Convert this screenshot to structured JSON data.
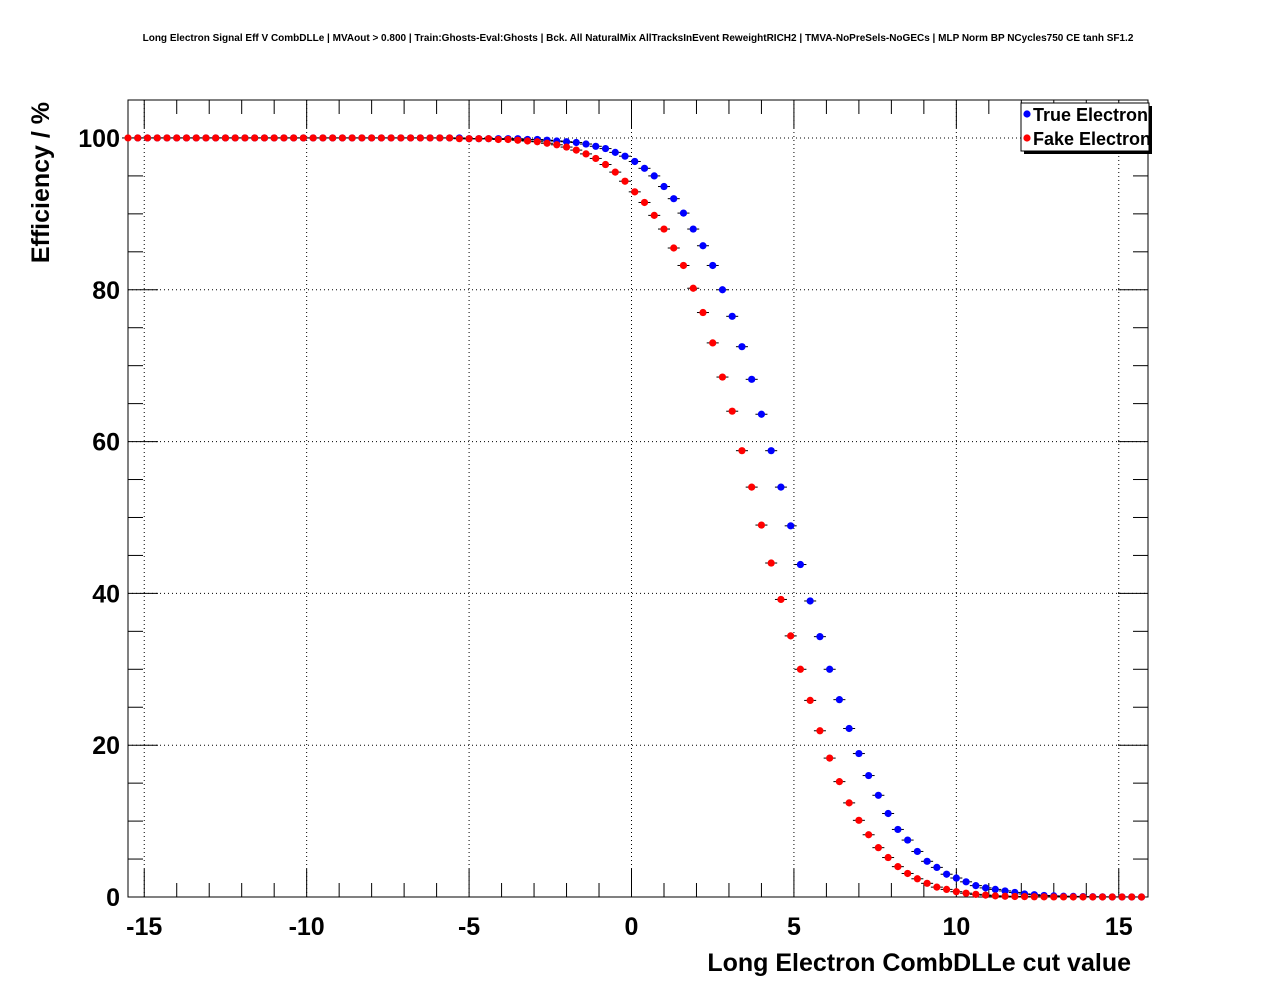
{
  "chart_data": {
    "type": "scatter",
    "title": "Long Electron Signal Eff V CombDLLe | MVAout > 0.800 | Train:Ghosts-Eval:Ghosts | Bck. All NaturalMix AllTracksInEvent ReweightRICH2 | TMVA-NoPreSels-NoGECs | MLP Norm BP NCycles750 CE tanh SF1.2",
    "xlabel": "Long Electron CombDLLe cut value",
    "ylabel": "Efficiency / %",
    "xlim": [
      -15.5,
      15.9
    ],
    "ylim": [
      0,
      105
    ],
    "xticks": [
      -15,
      -10,
      -5,
      0,
      5,
      10,
      15
    ],
    "yticks": [
      0,
      20,
      40,
      60,
      80,
      100
    ],
    "grid": true,
    "legend_position": "top-right",
    "x": [
      -15.5,
      -15.2,
      -14.9,
      -14.6,
      -14.3,
      -14.0,
      -13.7,
      -13.4,
      -13.1,
      -12.8,
      -12.5,
      -12.2,
      -11.9,
      -11.6,
      -11.3,
      -11.0,
      -10.7,
      -10.4,
      -10.1,
      -9.8,
      -9.5,
      -9.2,
      -8.9,
      -8.6,
      -8.3,
      -8.0,
      -7.7,
      -7.4,
      -7.1,
      -6.8,
      -6.5,
      -6.2,
      -5.9,
      -5.6,
      -5.3,
      -5.0,
      -4.7,
      -4.4,
      -4.1,
      -3.8,
      -3.5,
      -3.2,
      -2.9,
      -2.6,
      -2.3,
      -2.0,
      -1.7,
      -1.4,
      -1.1,
      -0.8,
      -0.5,
      -0.2,
      0.1,
      0.4,
      0.7,
      1.0,
      1.3,
      1.6,
      1.9,
      2.2,
      2.5,
      2.8,
      3.1,
      3.4,
      3.7,
      4.0,
      4.3,
      4.6,
      4.9,
      5.2,
      5.5,
      5.8,
      6.1,
      6.4,
      6.7,
      7.0,
      7.3,
      7.6,
      7.9,
      8.2,
      8.5,
      8.8,
      9.1,
      9.4,
      9.7,
      10.0,
      10.3,
      10.6,
      10.9,
      11.2,
      11.5,
      11.8,
      12.1,
      12.4,
      12.7,
      13.0,
      13.3,
      13.6,
      13.9,
      14.2,
      14.5,
      14.8,
      15.1,
      15.4,
      15.7
    ],
    "series": [
      {
        "name": "True Electron",
        "color": "#0000ff",
        "offset": 0.3,
        "values": [
          100.0,
          100.0,
          100.0,
          100.0,
          100.0,
          100.0,
          100.0,
          100.0,
          100.0,
          100.0,
          100.0,
          100.0,
          100.0,
          100.0,
          100.0,
          100.0,
          100.0,
          100.0,
          100.0,
          100.0,
          100.0,
          100.0,
          100.0,
          100.0,
          100.0,
          100.0,
          100.0,
          100.0,
          100.0,
          100.0,
          100.0,
          100.0,
          100.0,
          100.0,
          99.9,
          99.9,
          99.9,
          99.9,
          99.9,
          99.9,
          99.8,
          99.8,
          99.7,
          99.6,
          99.5,
          99.4,
          99.2,
          98.9,
          98.6,
          98.1,
          97.6,
          96.9,
          96.0,
          95.0,
          93.6,
          92.0,
          90.1,
          88.0,
          85.8,
          83.2,
          80.0,
          76.5,
          72.5,
          68.2,
          63.6,
          58.8,
          54.0,
          48.9,
          43.8,
          39.0,
          34.3,
          30.0,
          26.0,
          22.2,
          18.9,
          16.0,
          13.4,
          11.0,
          8.9,
          7.5,
          6.0,
          4.7,
          3.9,
          3.0,
          2.5,
          2.0,
          1.5,
          1.2,
          1.0,
          0.8,
          0.6,
          0.4,
          0.3,
          0.2,
          0.15,
          0.1,
          0.08,
          0.05,
          0.03,
          0.02,
          0.01,
          0.01,
          0.01,
          0.0,
          0.0
        ]
      },
      {
        "name": "Fake Electron",
        "color": "#ff0000",
        "offset": 0.0,
        "values": [
          100.0,
          100.0,
          100.0,
          100.0,
          100.0,
          100.0,
          100.0,
          100.0,
          100.0,
          100.0,
          100.0,
          100.0,
          100.0,
          100.0,
          100.0,
          100.0,
          100.0,
          100.0,
          100.0,
          100.0,
          100.0,
          100.0,
          100.0,
          100.0,
          100.0,
          100.0,
          100.0,
          100.0,
          100.0,
          100.0,
          100.0,
          100.0,
          100.0,
          100.0,
          99.9,
          99.9,
          99.9,
          99.9,
          99.8,
          99.8,
          99.7,
          99.6,
          99.5,
          99.3,
          99.1,
          98.8,
          98.4,
          97.9,
          97.3,
          96.5,
          95.5,
          94.3,
          92.9,
          91.5,
          89.8,
          88.0,
          85.5,
          83.2,
          80.2,
          77.0,
          73.0,
          68.5,
          64.0,
          58.8,
          54.0,
          49.0,
          44.0,
          39.2,
          34.4,
          30.0,
          25.9,
          21.9,
          18.3,
          15.2,
          12.4,
          10.1,
          8.2,
          6.5,
          5.2,
          4.0,
          3.1,
          2.4,
          1.8,
          1.3,
          1.0,
          0.7,
          0.5,
          0.35,
          0.25,
          0.15,
          0.1,
          0.07,
          0.05,
          0.03,
          0.02,
          0.01,
          0.01,
          0.0,
          0.0,
          0.0,
          0.0,
          0.0,
          0.0,
          0.0,
          0.0
        ]
      }
    ]
  }
}
